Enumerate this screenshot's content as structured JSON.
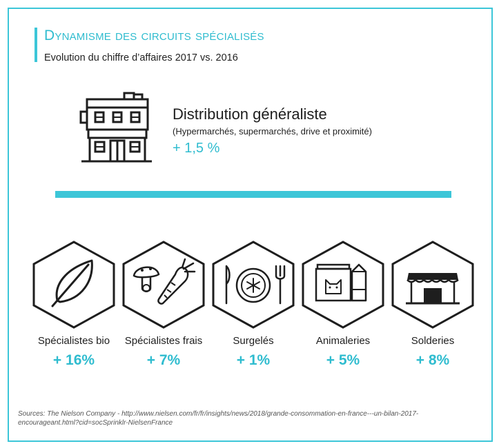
{
  "header": {
    "title": "Dynamisme des circuits spécialisés",
    "subtitle": "Evolution du chiffre d’affaires 2017 vs. 2016"
  },
  "general": {
    "icon": "building-icon",
    "title": "Distribution généraliste",
    "subtitle": "(Hypermarchés, supermarchés, drive et proximité)",
    "value": "+ 1,5 %"
  },
  "categories": [
    {
      "icon": "leaf-icon",
      "label": "Spécialistes bio",
      "value": "+ 16%"
    },
    {
      "icon": "vegetables-icon",
      "label": "Spécialistes frais",
      "value": "+ 7%"
    },
    {
      "icon": "frozen-plate-icon",
      "label": "Surgelés",
      "value": "+ 1%"
    },
    {
      "icon": "pet-food-icon",
      "label": "Animaleries",
      "value": "+ 5%"
    },
    {
      "icon": "shop-icon",
      "label": "Solderies",
      "value": "+ 8%"
    }
  ],
  "sources": "Sources: The Nielson Company - http://www.nielsen.com/fr/fr/insights/news/2018/grande-consommation-en-france---un-bilan-2017-encourageant.html?cid=socSprinklr-NielsenFrance",
  "colors": {
    "accent": "#3cc6d8",
    "accent_text": "#2fbccf",
    "icon_stroke": "#1e1e1e"
  }
}
